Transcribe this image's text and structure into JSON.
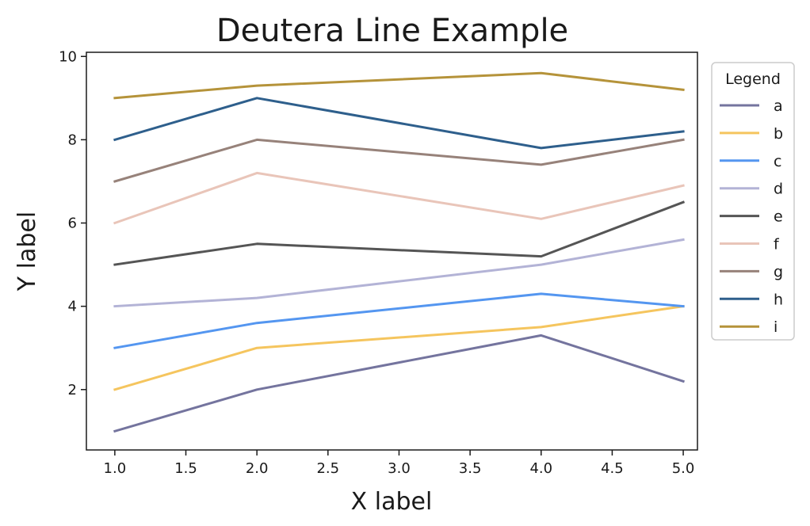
{
  "chart_data": {
    "type": "line",
    "title": "Deutera Line Example",
    "xlabel": "X label",
    "ylabel": "Y label",
    "xlim": [
      0.8,
      5.1
    ],
    "ylim": [
      0.55,
      10.1
    ],
    "x": [
      1.0,
      2.0,
      4.0,
      5.0
    ],
    "xticks": [
      1.0,
      1.5,
      2.0,
      2.5,
      3.0,
      3.5,
      4.0,
      4.5,
      5.0
    ],
    "xtick_labels": [
      "1.0",
      "1.5",
      "2.0",
      "2.5",
      "3.0",
      "3.5",
      "4.0",
      "4.5",
      "5.0"
    ],
    "yticks": [
      2,
      4,
      6,
      8,
      10
    ],
    "ytick_labels": [
      "2",
      "4",
      "6",
      "8",
      "10"
    ],
    "grid": false,
    "legend": {
      "title": "Legend",
      "placement": "outside-right"
    },
    "series": [
      {
        "name": "a",
        "color": "#74749e",
        "values": [
          1.0,
          2.0,
          3.3,
          2.2
        ]
      },
      {
        "name": "b",
        "color": "#f5c55e",
        "values": [
          2.0,
          3.0,
          3.5,
          4.0
        ]
      },
      {
        "name": "c",
        "color": "#5496f0",
        "values": [
          3.0,
          3.6,
          4.3,
          4.0
        ]
      },
      {
        "name": "d",
        "color": "#b3b3d6",
        "values": [
          4.0,
          4.2,
          5.0,
          5.6
        ]
      },
      {
        "name": "e",
        "color": "#555555",
        "values": [
          5.0,
          5.5,
          5.2,
          6.5
        ]
      },
      {
        "name": "f",
        "color": "#e9c5b9",
        "values": [
          6.0,
          7.2,
          6.1,
          6.9
        ]
      },
      {
        "name": "g",
        "color": "#97827a",
        "values": [
          7.0,
          8.0,
          7.4,
          8.0
        ]
      },
      {
        "name": "h",
        "color": "#2e5f8c",
        "values": [
          8.0,
          9.0,
          7.8,
          8.2
        ]
      },
      {
        "name": "i",
        "color": "#b5933a",
        "values": [
          9.0,
          9.3,
          9.6,
          9.2
        ]
      }
    ]
  }
}
